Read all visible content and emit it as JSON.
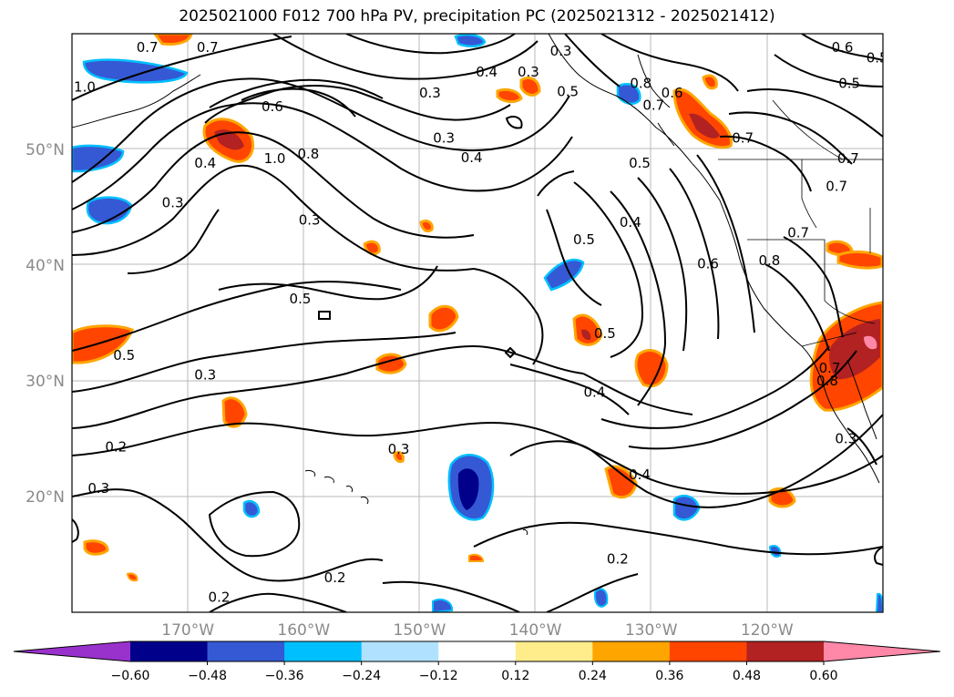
{
  "title": "2025021000 F012 700 hPa PV, precipitation PC (2025021312 - 2025021412)",
  "lat_labels": [
    {
      "lat": 50,
      "text": "50°N"
    },
    {
      "lat": 40,
      "text": "40°N"
    },
    {
      "lat": 30,
      "text": "30°N"
    },
    {
      "lat": 20,
      "text": "20°N"
    }
  ],
  "lon_labels": [
    {
      "lon": -170,
      "text": "170°W"
    },
    {
      "lon": -160,
      "text": "160°W"
    },
    {
      "lon": -150,
      "text": "150°W"
    },
    {
      "lon": -140,
      "text": "140°W"
    },
    {
      "lon": -130,
      "text": "130°W"
    },
    {
      "lon": -120,
      "text": "120°W"
    }
  ],
  "chart_data": {
    "type": "map",
    "extent": {
      "lon_min": -180,
      "lon_max": -110,
      "lat_min": 10,
      "lat_max": 60
    },
    "gridlines": true,
    "contour_field": "700 hPa PV",
    "contour_labels": [
      {
        "lon": -173.5,
        "lat": 58.8,
        "text": "0.7"
      },
      {
        "lon": -168.3,
        "lat": 58.8,
        "text": "0.7"
      },
      {
        "lon": -178.9,
        "lat": 55.4,
        "text": "1.0"
      },
      {
        "lon": -149.1,
        "lat": 54.9,
        "text": "0.3"
      },
      {
        "lon": -144.2,
        "lat": 56.7,
        "text": "0.4"
      },
      {
        "lon": -140.6,
        "lat": 56.7,
        "text": "0.3"
      },
      {
        "lon": -137.8,
        "lat": 58.5,
        "text": "0.3"
      },
      {
        "lon": -130.9,
        "lat": 55.7,
        "text": "0.8"
      },
      {
        "lon": -128.2,
        "lat": 54.9,
        "text": "0.6"
      },
      {
        "lon": -112.9,
        "lat": 55.7,
        "text": "0.5"
      },
      {
        "lon": -113.5,
        "lat": 58.8,
        "text": "0.6"
      },
      {
        "lon": -110.5,
        "lat": 57.9,
        "text": "0.5"
      },
      {
        "lon": -162.7,
        "lat": 53.7,
        "text": "0.6"
      },
      {
        "lon": -159.6,
        "lat": 49.6,
        "text": "0.8"
      },
      {
        "lon": -162.5,
        "lat": 49.2,
        "text": "1.0"
      },
      {
        "lon": -147.9,
        "lat": 51.0,
        "text": "0.3"
      },
      {
        "lon": -145.5,
        "lat": 49.3,
        "text": "0.4"
      },
      {
        "lon": -137.2,
        "lat": 55.0,
        "text": "0.5"
      },
      {
        "lon": -129.8,
        "lat": 53.8,
        "text": "0.7"
      },
      {
        "lon": -122.1,
        "lat": 51.0,
        "text": "0.7"
      },
      {
        "lon": -131.0,
        "lat": 48.8,
        "text": "0.5"
      },
      {
        "lon": -113.0,
        "lat": 49.2,
        "text": "0.7"
      },
      {
        "lon": -114.0,
        "lat": 46.8,
        "text": "0.7"
      },
      {
        "lon": -168.5,
        "lat": 48.8,
        "text": "0.4"
      },
      {
        "lon": -171.3,
        "lat": 45.4,
        "text": "0.3"
      },
      {
        "lon": -159.5,
        "lat": 43.9,
        "text": "0.3"
      },
      {
        "lon": -135.8,
        "lat": 42.2,
        "text": "0.5"
      },
      {
        "lon": -131.8,
        "lat": 43.7,
        "text": "0.4"
      },
      {
        "lon": -125.1,
        "lat": 40.1,
        "text": "0.6"
      },
      {
        "lon": -119.8,
        "lat": 40.4,
        "text": "0.8"
      },
      {
        "lon": -117.3,
        "lat": 42.8,
        "text": "0.7"
      },
      {
        "lon": -160.3,
        "lat": 37.1,
        "text": "0.5"
      },
      {
        "lon": -175.5,
        "lat": 32.2,
        "text": "0.5"
      },
      {
        "lon": -134.0,
        "lat": 34.1,
        "text": "0.5"
      },
      {
        "lon": -134.9,
        "lat": 29.0,
        "text": "0.4"
      },
      {
        "lon": -114.6,
        "lat": 31.1,
        "text": "0.7"
      },
      {
        "lon": -114.8,
        "lat": 30.0,
        "text": "0.8"
      },
      {
        "lon": -168.5,
        "lat": 30.5,
        "text": "0.3"
      },
      {
        "lon": -176.2,
        "lat": 24.3,
        "text": "0.2"
      },
      {
        "lon": -151.8,
        "lat": 24.1,
        "text": "0.3"
      },
      {
        "lon": -131.0,
        "lat": 21.9,
        "text": "0.4"
      },
      {
        "lon": -113.2,
        "lat": 25.0,
        "text": "0.3"
      },
      {
        "lon": -177.7,
        "lat": 20.7,
        "text": "0.3"
      },
      {
        "lon": -132.9,
        "lat": 14.6,
        "text": "0.2"
      },
      {
        "lon": -157.3,
        "lat": 13.0,
        "text": "0.2"
      },
      {
        "lon": -167.3,
        "lat": 11.3,
        "text": "0.2"
      }
    ],
    "colorbar": {
      "extend": "both",
      "colors": [
        "#9932cc",
        "#00008b",
        "#3559d4",
        "#00bfff",
        "#b0e2ff",
        "#ffffff",
        "#ffec8b",
        "#ffa500",
        "#ff4500",
        "#b22222",
        "#ff88a8"
      ],
      "boundaries": [
        -0.72,
        -0.6,
        -0.48,
        -0.36,
        -0.24,
        -0.12,
        0.12,
        0.24,
        0.36,
        0.48,
        0.6,
        0.72
      ],
      "tick_labels": [
        "−0.60",
        "−0.48",
        "−0.36",
        "−0.24",
        "−0.12",
        "0.12",
        "0.24",
        "0.36",
        "0.48",
        "0.60"
      ]
    }
  }
}
